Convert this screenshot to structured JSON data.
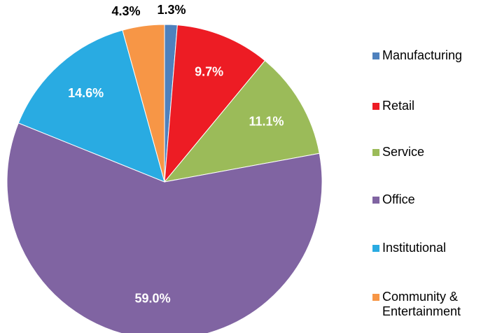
{
  "chart_data": {
    "type": "pie",
    "categories": [
      "Manufacturing",
      "Retail",
      "Service",
      "Office",
      "Institutional",
      "Community & Entertainment"
    ],
    "values": [
      1.3,
      9.7,
      11.1,
      59.0,
      14.6,
      4.3
    ],
    "value_labels": [
      "1.3%",
      "9.7%",
      "11.1%",
      "59.0%",
      "14.6%",
      "4.3%"
    ],
    "colors": [
      "#4f81bd",
      "#ed1c24",
      "#9bbb59",
      "#8064a2",
      "#29abe2",
      "#f79646"
    ],
    "legend": "right"
  }
}
